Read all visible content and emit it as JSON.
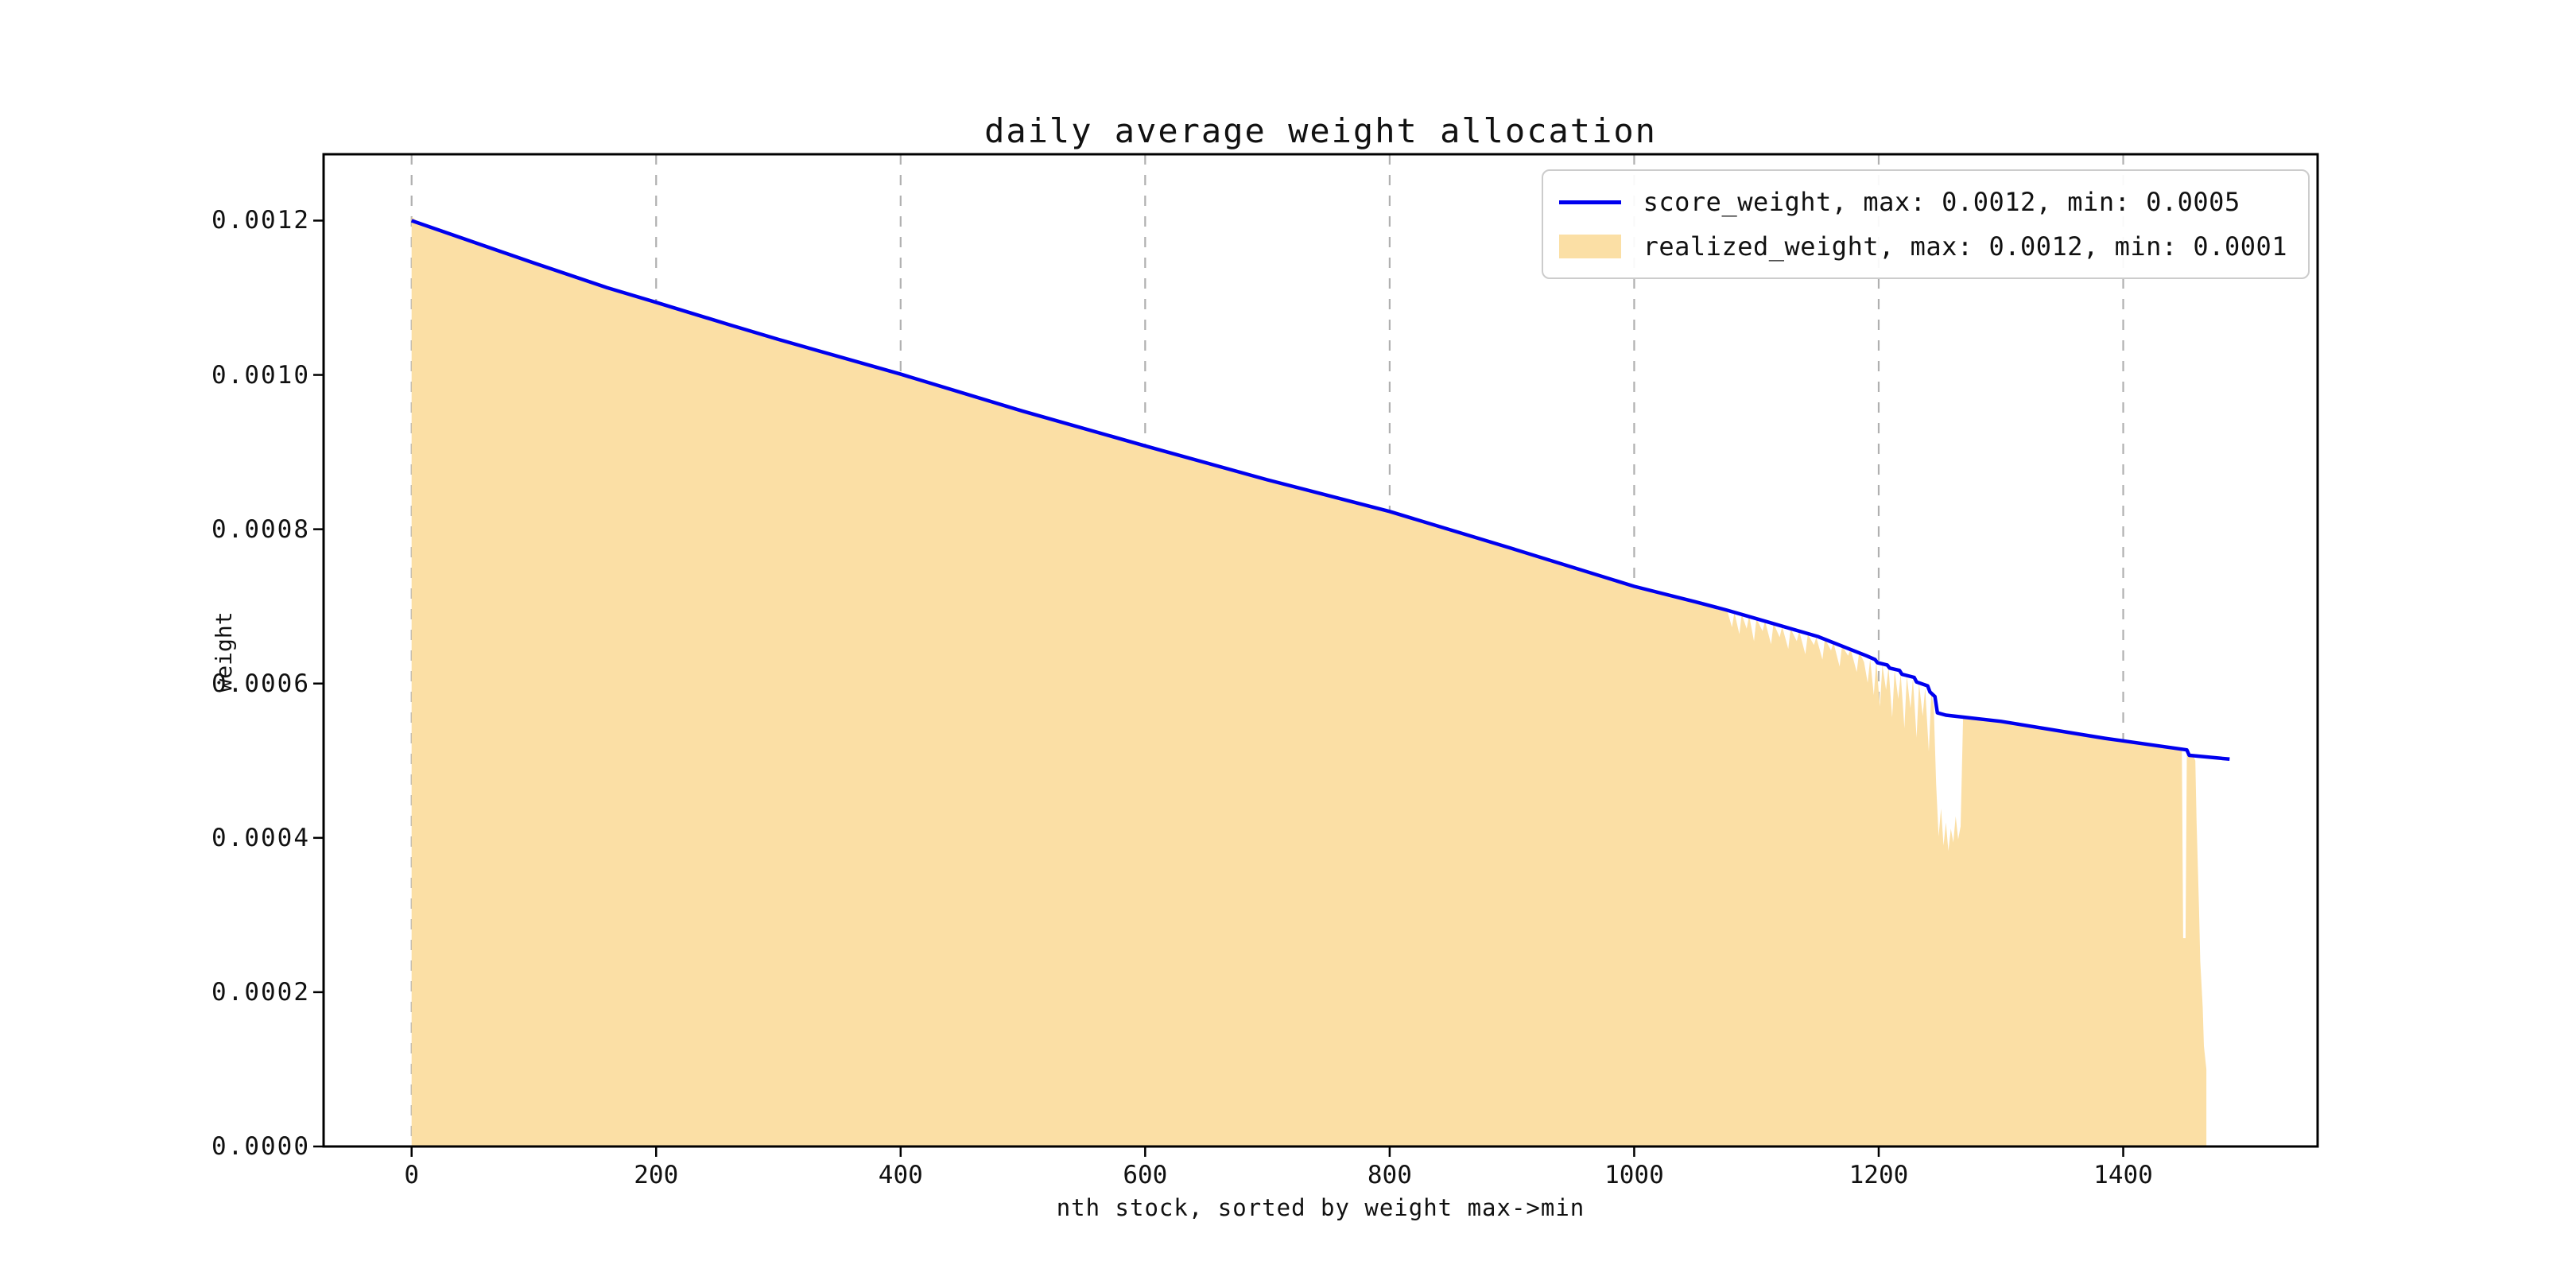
{
  "figure": {
    "title": "daily average weight allocation"
  },
  "chart_data": {
    "type": "area+line",
    "title": "daily average weight allocation",
    "xlabel": "nth stock, sorted by weight max->min",
    "ylabel": "weight",
    "x_ticks": [
      0,
      200,
      400,
      600,
      800,
      1000,
      1200,
      1400
    ],
    "x_tick_labels": [
      "0",
      "200",
      "400",
      "600",
      "800",
      "1000",
      "1200",
      "1400"
    ],
    "y_ticks": [
      0.0,
      0.0002,
      0.0004,
      0.0006,
      0.0008,
      0.001,
      0.0012
    ],
    "y_tick_labels": [
      "0.0000",
      "0.0002",
      "0.0004",
      "0.0006",
      "0.0008",
      "0.0010",
      "0.0012"
    ],
    "xlim": [
      -72,
      1559
    ],
    "ylim": [
      0,
      0.001286
    ],
    "grid": {
      "axis": "x",
      "style": "dashed",
      "color": "#b0b0b0"
    },
    "colors": {
      "score_weight_line": "#0000ee",
      "realized_weight_fill": "#fbdfa5",
      "grid": "#b0b0b0",
      "spine": "#000000",
      "legend_border": "#cccccc"
    },
    "legend": {
      "location": "upper right",
      "entries": [
        {
          "label": "score_weight, max: 0.0012, min: 0.0005",
          "type": "line",
          "color": "#0000ee"
        },
        {
          "label": "realized_weight, max: 0.0012, min: 0.0001",
          "type": "patch",
          "color": "#fbdfa5"
        }
      ]
    },
    "series": [
      {
        "name": "score_weight",
        "type": "line",
        "color": "#0000ee",
        "max": 0.0012,
        "min": 0.0005,
        "points": [
          [
            0,
            0.0012
          ],
          [
            60,
            0.001167
          ],
          [
            100,
            0.001145
          ],
          [
            160,
            0.001113
          ],
          [
            200,
            0.001094
          ],
          [
            260,
            0.001065
          ],
          [
            300,
            0.001046
          ],
          [
            400,
            0.001001
          ],
          [
            500,
            0.000953
          ],
          [
            600,
            0.000908
          ],
          [
            700,
            0.000864
          ],
          [
            800,
            0.000823
          ],
          [
            900,
            0.000775
          ],
          [
            1000,
            0.000726
          ],
          [
            1050,
            0.000706
          ],
          [
            1076,
            0.000695
          ],
          [
            1100,
            0.000684
          ],
          [
            1150,
            0.000661
          ],
          [
            1190,
            0.000636
          ],
          [
            1197,
            0.000631
          ],
          [
            1199,
            0.000627
          ],
          [
            1207,
            0.000624
          ],
          [
            1209,
            0.00062
          ],
          [
            1217,
            0.000617
          ],
          [
            1219,
            0.000612
          ],
          [
            1229,
            0.000608
          ],
          [
            1231,
            0.000602
          ],
          [
            1240,
            0.000597
          ],
          [
            1242,
            0.000589
          ],
          [
            1246,
            0.000583
          ],
          [
            1248,
            0.000562
          ],
          [
            1255,
            0.000559
          ],
          [
            1300,
            0.000551
          ],
          [
            1385,
            0.000529
          ],
          [
            1452,
            0.000514
          ],
          [
            1454,
            0.000507
          ],
          [
            1487,
            0.000502
          ]
        ]
      },
      {
        "name": "realized_weight",
        "type": "area",
        "color": "#fbdfa5",
        "max": 0.0012,
        "min": 0.0001,
        "points": [
          [
            0,
            0.001205
          ],
          [
            4,
            0.0012
          ],
          [
            100,
            0.001145
          ],
          [
            200,
            0.001094
          ],
          [
            300,
            0.001046
          ],
          [
            400,
            0.001001
          ],
          [
            500,
            0.000953
          ],
          [
            600,
            0.000908
          ],
          [
            700,
            0.000864
          ],
          [
            800,
            0.000823
          ],
          [
            900,
            0.000775
          ],
          [
            1000,
            0.000726
          ],
          [
            1050,
            0.000706
          ],
          [
            1076,
            0.000695
          ],
          [
            1080,
            0.000673
          ],
          [
            1082,
            0.000692
          ],
          [
            1086,
            0.000664
          ],
          [
            1088,
            0.00069
          ],
          [
            1092,
            0.000671
          ],
          [
            1094,
            0.000688
          ],
          [
            1098,
            0.000655
          ],
          [
            1100,
            0.000684
          ],
          [
            1105,
            0.000668
          ],
          [
            1107,
            0.000681
          ],
          [
            1112,
            0.000651
          ],
          [
            1114,
            0.000678
          ],
          [
            1119,
            0.00066
          ],
          [
            1121,
            0.000674
          ],
          [
            1126,
            0.000645
          ],
          [
            1128,
            0.000671
          ],
          [
            1133,
            0.000655
          ],
          [
            1135,
            0.000668
          ],
          [
            1140,
            0.000638
          ],
          [
            1142,
            0.000664
          ],
          [
            1147,
            0.00065
          ],
          [
            1149,
            0.00066
          ],
          [
            1154,
            0.000631
          ],
          [
            1156,
            0.000658
          ],
          [
            1161,
            0.000643
          ],
          [
            1163,
            0.000653
          ],
          [
            1168,
            0.000622
          ],
          [
            1170,
            0.000649
          ],
          [
            1175,
            0.000636
          ],
          [
            1177,
            0.000645
          ],
          [
            1182,
            0.000615
          ],
          [
            1184,
            0.000641
          ],
          [
            1188,
            0.000628
          ],
          [
            1191,
            0.000601
          ],
          [
            1193,
            0.000632
          ],
          [
            1196,
            0.000585
          ],
          [
            1198,
            0.000629
          ],
          [
            1201,
            0.00057
          ],
          [
            1203,
            0.000624
          ],
          [
            1206,
            0.000592
          ],
          [
            1208,
            0.000621
          ],
          [
            1211,
            0.000556
          ],
          [
            1213,
            0.000617
          ],
          [
            1216,
            0.00058
          ],
          [
            1218,
            0.000613
          ],
          [
            1221,
            0.000542
          ],
          [
            1223,
            0.00061
          ],
          [
            1226,
            0.000568
          ],
          [
            1228,
            0.000606
          ],
          [
            1231,
            0.00053
          ],
          [
            1233,
            0.0006
          ],
          [
            1236,
            0.000558
          ],
          [
            1238,
            0.000594
          ],
          [
            1241,
            0.000512
          ],
          [
            1243,
            0.000588
          ],
          [
            1245,
            0.00057
          ],
          [
            1247,
            0.00047
          ],
          [
            1249,
            0.000402
          ],
          [
            1251,
            0.000438
          ],
          [
            1253,
            0.00039
          ],
          [
            1255,
            0.00042
          ],
          [
            1257,
            0.000383
          ],
          [
            1259,
            0.000412
          ],
          [
            1261,
            0.000394
          ],
          [
            1263,
            0.000428
          ],
          [
            1265,
            0.000398
          ],
          [
            1267,
            0.000415
          ],
          [
            1269,
            0.000556
          ],
          [
            1300,
            0.000549
          ],
          [
            1350,
            0.000537
          ],
          [
            1385,
            0.000529
          ],
          [
            1420,
            0.000521
          ],
          [
            1448,
            0.000513
          ],
          [
            1449,
            0.00027
          ],
          [
            1451,
            0.00027
          ],
          [
            1452,
            0.000508
          ],
          [
            1458,
            0.000504
          ],
          [
            1459,
            0.0005
          ],
          [
            1460,
            0.00042
          ],
          [
            1462,
            0.00031
          ],
          [
            1463,
            0.00024
          ],
          [
            1465,
            0.00018
          ],
          [
            1466,
            0.00013
          ],
          [
            1468,
            0.0001
          ]
        ]
      }
    ]
  }
}
